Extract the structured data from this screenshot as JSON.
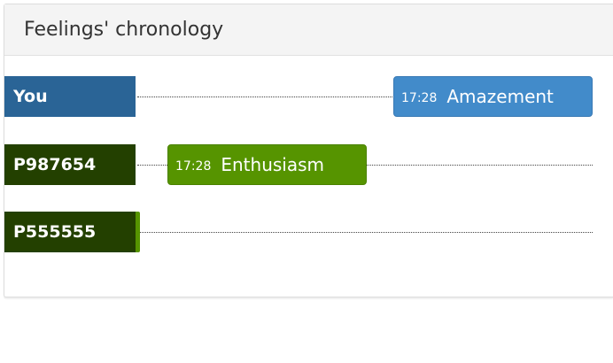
{
  "panel": {
    "title": "Feelings' chronology"
  },
  "rows": [
    {
      "participant": "You",
      "event": {
        "time": "17:28",
        "feeling": "Amazement"
      }
    },
    {
      "participant": "P987654",
      "event": {
        "time": "17:28",
        "feeling": "Enthusiasm"
      }
    },
    {
      "participant": "P555555"
    }
  ],
  "colors": {
    "you": "#2a6496",
    "participant": "#234000",
    "blue_event": "#428bca",
    "green_event": "#569400"
  }
}
